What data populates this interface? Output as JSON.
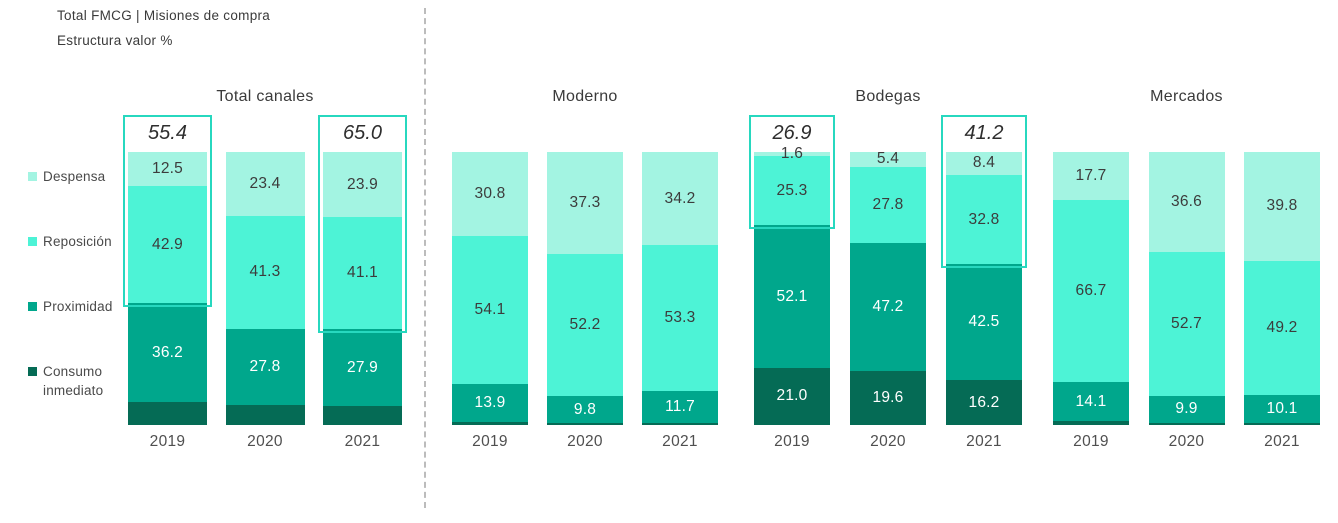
{
  "header": {
    "title": "Total FMCG | Misiones de compra",
    "subtitle": "Estructura valor %"
  },
  "colors": {
    "series": [
      "#A3F4E2",
      "#4DF3D6",
      "#00A78C",
      "#056B55"
    ],
    "segment_label_dark": "#3C3C3C",
    "segment_label_light": "#FFFFFF",
    "highlight_border": "#27D8BF",
    "divider": "#BCBCBC",
    "title_text": "#3A3A3A",
    "year_text": "#4F4F4F"
  },
  "legend": [
    {
      "label": "Despensa",
      "color": "#A3F4E2"
    },
    {
      "label": "Reposición",
      "color": "#4DF3D6"
    },
    {
      "label": "Proximidad",
      "color": "#00A78C"
    },
    {
      "label": "Consumo inmediato",
      "color": "#056B55"
    }
  ],
  "chart_data": {
    "type": "bar",
    "stacked": true,
    "value_unit": "%",
    "ylim": [
      0,
      100
    ],
    "series_names": [
      "Despensa",
      "Reposición",
      "Proximidad",
      "Consumo inmediato"
    ],
    "categories": [
      "2019",
      "2020",
      "2021"
    ],
    "groups": [
      {
        "title": "Total canales",
        "bars": [
          {
            "category": "2019",
            "values": [
              12.5,
              42.9,
              36.2,
              8.4
            ],
            "labels": [
              "12.5",
              "42.9",
              "36.2",
              ""
            ],
            "highlight": {
              "label": "55.4",
              "segments": 2
            }
          },
          {
            "category": "2020",
            "values": [
              23.4,
              41.3,
              27.8,
              7.5
            ],
            "labels": [
              "23.4",
              "41.3",
              "27.8",
              ""
            ]
          },
          {
            "category": "2021",
            "values": [
              23.9,
              41.1,
              27.9,
              7.1
            ],
            "labels": [
              "23.9",
              "41.1",
              "27.9",
              ""
            ],
            "highlight": {
              "label": "65.0",
              "segments": 2
            }
          }
        ]
      },
      {
        "title": "Moderno",
        "bars": [
          {
            "category": "2019",
            "values": [
              30.8,
              54.1,
              13.9,
              1.2
            ],
            "labels": [
              "30.8",
              "54.1",
              "13.9",
              ""
            ]
          },
          {
            "category": "2020",
            "values": [
              37.3,
              52.2,
              9.8,
              0.7
            ],
            "labels": [
              "37.3",
              "52.2",
              "9.8",
              ""
            ]
          },
          {
            "category": "2021",
            "values": [
              34.2,
              53.3,
              11.7,
              0.8
            ],
            "labels": [
              "34.2",
              "53.3",
              "11.7",
              ""
            ]
          }
        ]
      },
      {
        "title": "Bodegas",
        "bars": [
          {
            "category": "2019",
            "values": [
              1.6,
              25.3,
              52.1,
              21.0
            ],
            "labels": [
              "1.6",
              "25.3",
              "52.1",
              "21.0"
            ],
            "highlight": {
              "label": "26.9",
              "segments": 2
            }
          },
          {
            "category": "2020",
            "values": [
              5.4,
              27.8,
              47.2,
              19.6
            ],
            "labels": [
              "5.4",
              "27.8",
              "47.2",
              "19.6"
            ]
          },
          {
            "category": "2021",
            "values": [
              8.4,
              32.8,
              42.5,
              16.2
            ],
            "labels": [
              "8.4",
              "32.8",
              "42.5",
              "16.2"
            ],
            "highlight": {
              "label": "41.2",
              "segments": 2
            }
          }
        ]
      },
      {
        "title": "Mercados",
        "bars": [
          {
            "category": "2019",
            "values": [
              17.7,
              66.7,
              14.1,
              1.5
            ],
            "labels": [
              "17.7",
              "66.7",
              "14.1",
              ""
            ]
          },
          {
            "category": "2020",
            "values": [
              36.6,
              52.7,
              9.9,
              0.8
            ],
            "labels": [
              "36.6",
              "52.7",
              "9.9",
              ""
            ]
          },
          {
            "category": "2021",
            "values": [
              39.8,
              49.2,
              10.1,
              0.9
            ],
            "labels": [
              "39.8",
              "49.2",
              "10.1",
              ""
            ]
          }
        ]
      }
    ]
  }
}
